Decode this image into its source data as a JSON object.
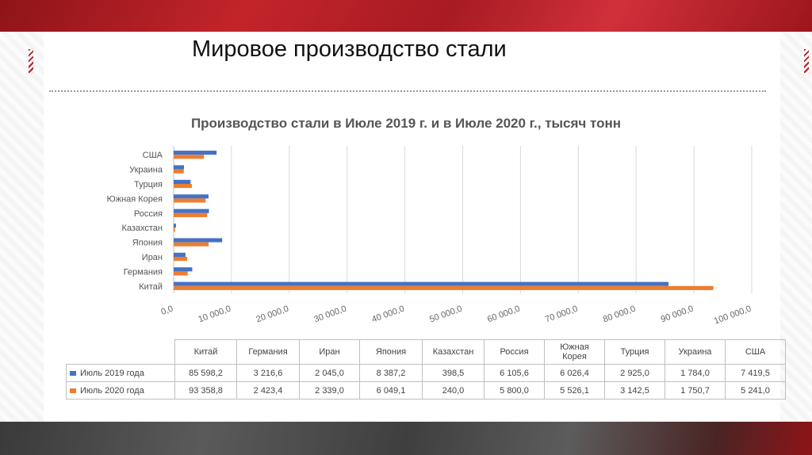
{
  "slide": {
    "title": "Мировое производство стали"
  },
  "colors": {
    "s2019": "#4472c4",
    "s2020": "#ed7d31"
  },
  "chart_data": {
    "type": "bar",
    "orientation": "horizontal",
    "title": "Производство стали в Июле 2019 г. и в Июле 2020 г., тысяч тонн",
    "categories": [
      "Китай",
      "Германия",
      "Иран",
      "Япония",
      "Казахстан",
      "Россия",
      "Южная Корея",
      "Турция",
      "Украина",
      "США"
    ],
    "table_categories": [
      "Китай",
      "Германия",
      "Иран",
      "Япония",
      "Казахстан",
      "Россия",
      "Южная\nКорея",
      "Турция",
      "Украина",
      "США"
    ],
    "series": [
      {
        "name": "Июль 2019 года",
        "values": [
          85598.2,
          3216.6,
          2045.0,
          8387.2,
          398.5,
          6105.6,
          6026.4,
          2925.0,
          1784.0,
          7419.5
        ],
        "labels": [
          "85 598,2",
          "3 216,6",
          "2 045,0",
          "8 387,2",
          "398,5",
          "6 105,6",
          "6 026,4",
          "2 925,0",
          "1 784,0",
          "7 419,5"
        ]
      },
      {
        "name": "Июль 2020 года",
        "values": [
          93358.8,
          2423.4,
          2339.0,
          6049.1,
          240.0,
          5800.0,
          5526.1,
          3142.5,
          1750.7,
          5241.0
        ],
        "labels": [
          "93 358,8",
          "2 423,4",
          "2 339,0",
          "6 049,1",
          "240,0",
          "5 800,0",
          "5 526,1",
          "3 142,5",
          "1 750,7",
          "5 241,0"
        ]
      }
    ],
    "xlim": [
      0,
      100000
    ],
    "x_ticks": [
      "0,0",
      "10 000,0",
      "20 000,0",
      "30 000,0",
      "40 000,0",
      "50 000,0",
      "60 000,0",
      "70 000,0",
      "80 000,0",
      "90 000,0",
      "100 000,0"
    ],
    "grid": true,
    "legend": "table-left"
  }
}
